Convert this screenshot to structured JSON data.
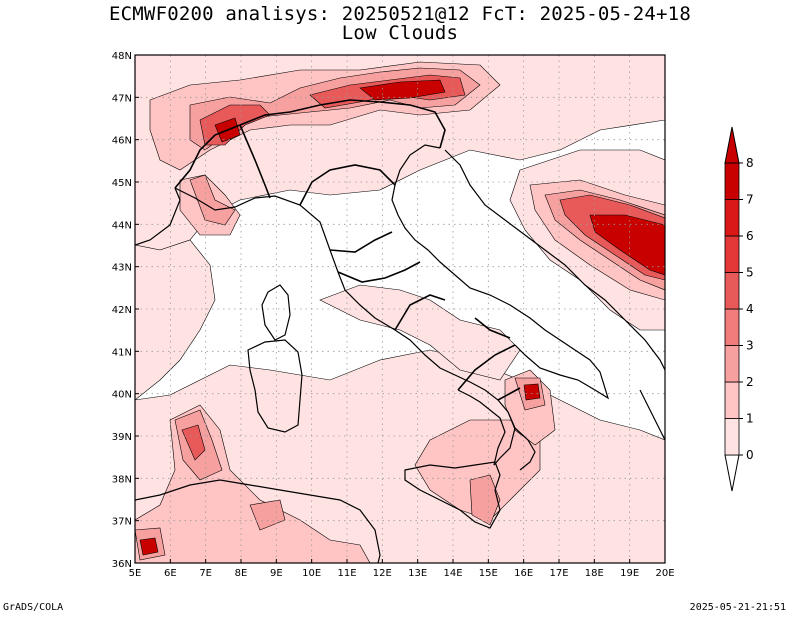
{
  "title": {
    "line1": "ECMWF0200 analisys: 20250521@12 FcT: 2025-05-24+18",
    "line2": "Low Clouds"
  },
  "map": {
    "lon_labels": [
      "5E",
      "6E",
      "7E",
      "8E",
      "9E",
      "10E",
      "11E",
      "12E",
      "13E",
      "14E",
      "15E",
      "16E",
      "17E",
      "18E",
      "19E",
      "20E"
    ],
    "lat_labels": [
      "36N",
      "37N",
      "38N",
      "39N",
      "40N",
      "41N",
      "42N",
      "43N",
      "44N",
      "45N",
      "46N",
      "47N",
      "48N"
    ],
    "lon_range": [
      5,
      20
    ],
    "lat_range": [
      36,
      48
    ],
    "grid": "dotted",
    "colors": {
      "level_1": "#ffe3e3",
      "level_2": "#ffc4c4",
      "level_3": "#f7a0a0",
      "level_4": "#f07c7c",
      "level_5": "#e85a5a",
      "level_6": "#e23838",
      "level_7": "#db1818",
      "level_8": "#c80000"
    }
  },
  "colorbar": {
    "labels": [
      "0",
      "1",
      "2",
      "3",
      "4",
      "5",
      "6",
      "7",
      "8"
    ],
    "colors": [
      "#ffffff",
      "#ffe3e3",
      "#ffc4c4",
      "#f7a0a0",
      "#f07c7c",
      "#e85a5a",
      "#e23838",
      "#db1818",
      "#c80000"
    ]
  },
  "footer": {
    "left": "GrADS/COLA",
    "right": "2025-05-21-21:51"
  }
}
